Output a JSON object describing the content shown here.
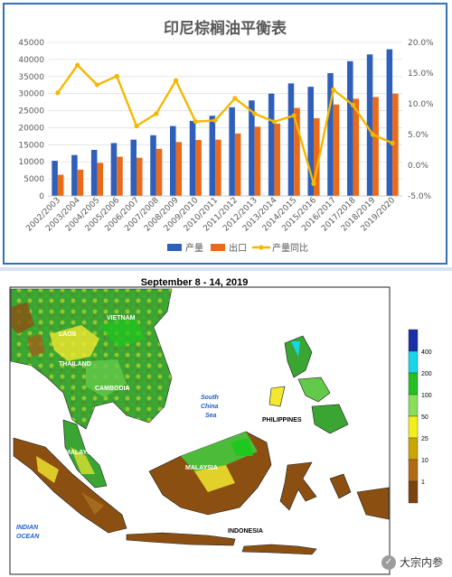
{
  "chart_data": {
    "type": "bar",
    "title": "印尼棕榈油平衡表",
    "categories": [
      "2002/2003",
      "2003/2004",
      "2004/2005",
      "2005/2006",
      "2006/2007",
      "2007/2008",
      "2008/2009",
      "2009/2010",
      "2010/2011",
      "2011/2012",
      "2012/2013",
      "2013/2014",
      "2014/2015",
      "2015/2016",
      "2016/2017",
      "2017/2018",
      "2018/2019",
      "2019/2020"
    ],
    "series": [
      {
        "name": "产量",
        "kind": "bar",
        "axis": "left",
        "color": "#2e5fba",
        "values": [
          10300,
          12000,
          13500,
          15500,
          16500,
          17800,
          20500,
          22000,
          23500,
          26000,
          28000,
          30000,
          33000,
          32000,
          36000,
          39500,
          41500,
          43000
        ]
      },
      {
        "name": "出口",
        "kind": "bar",
        "axis": "left",
        "color": "#e96a1a",
        "values": [
          6200,
          7700,
          9700,
          11500,
          11200,
          13800,
          15800,
          16400,
          16500,
          18300,
          20300,
          21200,
          25800,
          22800,
          26800,
          28500,
          29000,
          30000
        ]
      },
      {
        "name": "产量同比",
        "kind": "line",
        "axis": "right",
        "color": "#f5b800",
        "values": [
          11.8,
          16.3,
          13.1,
          14.5,
          6.4,
          8.4,
          13.8,
          7.1,
          7.3,
          10.9,
          8.4,
          7.1,
          8.1,
          -3.0,
          12.3,
          9.8,
          5.0,
          3.6
        ]
      }
    ],
    "ylim_left": [
      0,
      45000
    ],
    "yticks_left": [
      "0",
      "5000",
      "10000",
      "15000",
      "20000",
      "25000",
      "30000",
      "35000",
      "40000",
      "45000"
    ],
    "ylim_right": [
      -5,
      20
    ],
    "yticks_right": [
      "-5.0%",
      "0.0%",
      "5.0%",
      "10.0%",
      "15.0%",
      "20.0%"
    ],
    "legend_position": "bottom"
  },
  "map": {
    "title": "September 8 - 14, 2019",
    "labels": {
      "vietnam": "VIETNAM",
      "laos": "LAOS",
      "thailand": "THAILAND",
      "cambodia": "CAMBODIA",
      "scs1": "South",
      "scs2": "China",
      "scs3": "Sea",
      "philippines": "PHILIPPINES",
      "malaysia1": "MALAYSIA",
      "malaysia2": "MALAYSIA",
      "indonesia": "INDONESIA",
      "ocean1": "INDIAN",
      "ocean2": "OCEAN"
    },
    "legend": {
      "values": [
        "400",
        "200",
        "100",
        "50",
        "25",
        "10",
        "1"
      ],
      "colors": [
        "#1b2fa8",
        "#16d6e8",
        "#22c022",
        "#88e05a",
        "#f2f018",
        "#c8a500",
        "#b36a14",
        "#7a4310"
      ]
    }
  },
  "watermark": {
    "icon": "wechat-icon",
    "text": "大宗内参"
  }
}
